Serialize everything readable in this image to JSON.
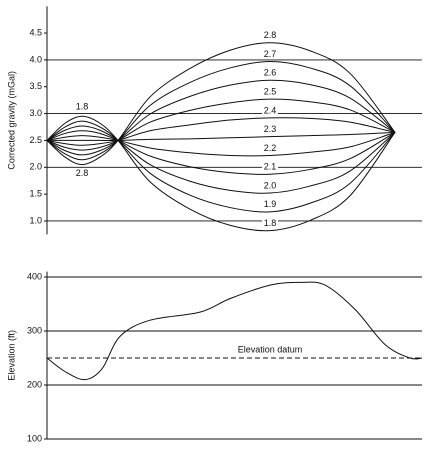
{
  "chart_data": [
    {
      "type": "line",
      "y_label": "Corrected gravity (mGal)",
      "x": [
        0,
        18,
        35,
        53,
        71,
        103,
        143,
        183,
        223,
        263,
        303,
        348
      ],
      "xlim": [
        0,
        375
      ],
      "ylim": [
        0.75,
        5
      ],
      "yticks": [
        {
          "value": 1,
          "label": "1.0"
        },
        1.5,
        {
          "value": 2,
          "label": "2.0"
        },
        2.5,
        {
          "value": 3,
          "label": "3.0"
        },
        3.5,
        {
          "value": 4,
          "label": "4.0"
        },
        4.5
      ],
      "grid": true,
      "color": "#111111",
      "series": [
        {
          "name": "1.8",
          "values": [
            2.5,
            2.82,
            2.95,
            2.82,
            2.5,
            1.73,
            1.22,
            0.92,
            0.82,
            1.01,
            1.47,
            2.65
          ]
        },
        {
          "name": "1.9",
          "values": [
            2.5,
            2.75,
            2.86,
            2.75,
            2.5,
            1.89,
            1.48,
            1.25,
            1.17,
            1.33,
            1.7,
            2.65
          ]
        },
        {
          "name": "2.0",
          "values": [
            2.5,
            2.69,
            2.77,
            2.69,
            2.5,
            2.05,
            1.74,
            1.57,
            1.52,
            1.65,
            1.93,
            2.65
          ]
        },
        {
          "name": "2.1",
          "values": [
            2.5,
            2.63,
            2.68,
            2.63,
            2.5,
            2.21,
            2.01,
            1.9,
            1.87,
            1.96,
            2.16,
            2.65
          ]
        },
        {
          "name": "2.2",
          "values": [
            2.5,
            2.56,
            2.59,
            2.56,
            2.5,
            2.36,
            2.27,
            2.22,
            2.22,
            2.28,
            2.38,
            2.65
          ]
        },
        {
          "name": "2.3",
          "values": [
            2.5,
            2.5,
            2.5,
            2.5,
            2.5,
            2.52,
            2.53,
            2.55,
            2.57,
            2.59,
            2.61,
            2.65
          ]
        },
        {
          "name": "2.4",
          "values": [
            2.5,
            2.44,
            2.41,
            2.44,
            2.5,
            2.68,
            2.79,
            2.88,
            2.92,
            2.91,
            2.84,
            2.65
          ]
        },
        {
          "name": "2.5",
          "values": [
            2.5,
            2.37,
            2.32,
            2.37,
            2.5,
            2.84,
            3.06,
            3.2,
            3.27,
            3.22,
            3.07,
            2.65
          ]
        },
        {
          "name": "2.6",
          "values": [
            2.5,
            2.31,
            2.23,
            2.31,
            2.5,
            2.99,
            3.32,
            3.53,
            3.62,
            3.54,
            3.29,
            2.65
          ]
        },
        {
          "name": "2.7",
          "values": [
            2.5,
            2.25,
            2.14,
            2.25,
            2.5,
            3.15,
            3.58,
            3.85,
            3.97,
            3.85,
            3.52,
            2.65
          ]
        },
        {
          "name": "2.8",
          "values": [
            2.5,
            2.19,
            2.05,
            2.19,
            2.5,
            3.31,
            3.84,
            4.18,
            4.32,
            4.17,
            3.75,
            2.65
          ]
        }
      ]
    },
    {
      "type": "line",
      "y_label": "Elevation (ft)",
      "x": [
        0,
        18,
        38,
        55,
        73,
        103,
        153,
        183,
        223,
        253,
        278,
        308,
        338,
        363,
        375
      ],
      "xlim": [
        0,
        375
      ],
      "ylim": [
        100,
        410
      ],
      "yticks": [
        100,
        200,
        300,
        400
      ],
      "grid": true,
      "color": "#111111",
      "series": [
        {
          "values": [
            250,
            225,
            210,
            230,
            290,
            320,
            335,
            360,
            385,
            390,
            385,
            340,
            275,
            250,
            250
          ]
        }
      ],
      "datum": {
        "label": "Elevation datum",
        "value": 250
      }
    }
  ]
}
